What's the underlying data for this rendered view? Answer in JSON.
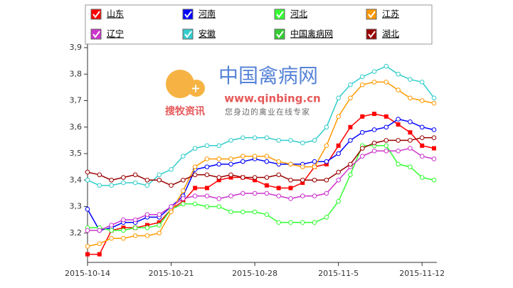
{
  "chart_data": {
    "type": "line",
    "categories": [
      "2015-10-14",
      null,
      null,
      null,
      null,
      null,
      null,
      "2015-10-21",
      null,
      null,
      null,
      null,
      null,
      null,
      "2015-10-28",
      null,
      null,
      null,
      null,
      null,
      null,
      "2015-11-5",
      null,
      null,
      null,
      null,
      null,
      null,
      "2015-11-12",
      null
    ],
    "ylim": [
      3.1,
      3.9
    ],
    "yticks": [
      {
        "value": 3.2,
        "label": "3,2"
      },
      {
        "value": 3.3,
        "label": "3,3"
      },
      {
        "value": 3.4,
        "label": "3,4"
      },
      {
        "value": 3.5,
        "label": "3,5"
      },
      {
        "value": 3.6,
        "label": "3,6"
      },
      {
        "value": 3.7,
        "label": "3,7"
      },
      {
        "value": 3.8,
        "label": "3,8"
      },
      {
        "value": 3.9,
        "label": "3,9"
      }
    ],
    "grid": false,
    "annotations": [
      "中国禽病网",
      "www.qinbing.cn",
      "搜牧资讯",
      "您身边的禽业在线专家"
    ],
    "series": [
      {
        "name": "山东",
        "color": "#ff0000",
        "marker": "square",
        "values": [
          3.12,
          3.12,
          3.21,
          3.22,
          3.22,
          3.23,
          3.24,
          3.29,
          3.32,
          3.37,
          3.37,
          3.4,
          3.41,
          3.41,
          3.4,
          3.38,
          3.37,
          3.37,
          3.39,
          3.45,
          3.46,
          3.53,
          3.6,
          3.64,
          3.65,
          3.64,
          3.61,
          3.58,
          3.53,
          3.52
        ]
      },
      {
        "name": "河南",
        "color": "#0000ff",
        "marker": "circle",
        "values": [
          3.29,
          3.21,
          3.22,
          3.24,
          3.24,
          3.26,
          3.26,
          3.3,
          3.34,
          3.44,
          3.45,
          3.46,
          3.46,
          3.47,
          3.48,
          3.47,
          3.46,
          3.46,
          3.46,
          3.47,
          3.47,
          3.5,
          3.55,
          3.58,
          3.59,
          3.6,
          3.63,
          3.62,
          3.6,
          3.59
        ]
      },
      {
        "name": "河北",
        "color": "#33ff33",
        "marker": "circle",
        "values": [
          3.22,
          3.22,
          3.21,
          3.21,
          3.22,
          3.22,
          3.23,
          3.29,
          3.31,
          3.31,
          3.3,
          3.3,
          3.28,
          3.28,
          3.28,
          3.27,
          3.24,
          3.24,
          3.24,
          3.24,
          3.26,
          3.32,
          3.42,
          3.53,
          3.53,
          3.53,
          3.46,
          3.45,
          3.41,
          3.4
        ]
      },
      {
        "name": "江苏",
        "color": "#ff9900",
        "marker": "circle",
        "values": [
          3.15,
          3.16,
          3.18,
          3.18,
          3.19,
          3.19,
          3.2,
          3.28,
          3.36,
          3.45,
          3.48,
          3.48,
          3.48,
          3.49,
          3.49,
          3.49,
          3.47,
          3.46,
          3.45,
          3.45,
          3.53,
          3.64,
          3.71,
          3.76,
          3.77,
          3.77,
          3.74,
          3.71,
          3.7,
          3.69
        ]
      },
      {
        "name": "辽宁",
        "color": "#cc33cc",
        "marker": "circle",
        "values": [
          3.21,
          3.21,
          3.23,
          3.25,
          3.25,
          3.27,
          3.27,
          3.3,
          3.33,
          3.34,
          3.34,
          3.33,
          3.34,
          3.35,
          3.35,
          3.35,
          3.34,
          3.33,
          3.34,
          3.34,
          3.35,
          3.4,
          3.45,
          3.49,
          3.51,
          3.51,
          3.51,
          3.52,
          3.49,
          3.48
        ]
      },
      {
        "name": "安徽",
        "color": "#33cccc",
        "marker": "circle",
        "values": [
          3.4,
          3.38,
          3.38,
          3.39,
          3.39,
          3.38,
          3.42,
          3.44,
          3.49,
          3.52,
          3.53,
          3.53,
          3.55,
          3.56,
          3.56,
          3.56,
          3.55,
          3.55,
          3.54,
          3.55,
          3.6,
          3.71,
          3.76,
          3.79,
          3.81,
          3.83,
          3.8,
          3.78,
          3.77,
          3.71
        ]
      },
      {
        "name": "中国禽病网",
        "color": "#33cc33",
        "marker": "circle",
        "values": [
          null,
          null,
          null,
          null,
          null,
          null,
          null,
          null,
          null,
          null,
          null,
          null,
          null,
          null,
          null,
          null,
          null,
          null,
          null,
          null,
          null,
          null,
          null,
          null,
          null,
          null,
          null,
          null,
          null,
          null
        ]
      },
      {
        "name": "湖北",
        "color": "#990000",
        "marker": "circle",
        "values": [
          3.43,
          3.42,
          3.4,
          3.41,
          3.42,
          3.4,
          3.4,
          3.38,
          3.4,
          3.42,
          3.42,
          3.41,
          3.42,
          3.41,
          3.41,
          3.41,
          3.42,
          3.4,
          3.4,
          3.4,
          3.4,
          3.43,
          3.46,
          3.52,
          3.54,
          3.55,
          3.55,
          3.55,
          3.56,
          3.56
        ]
      }
    ]
  }
}
